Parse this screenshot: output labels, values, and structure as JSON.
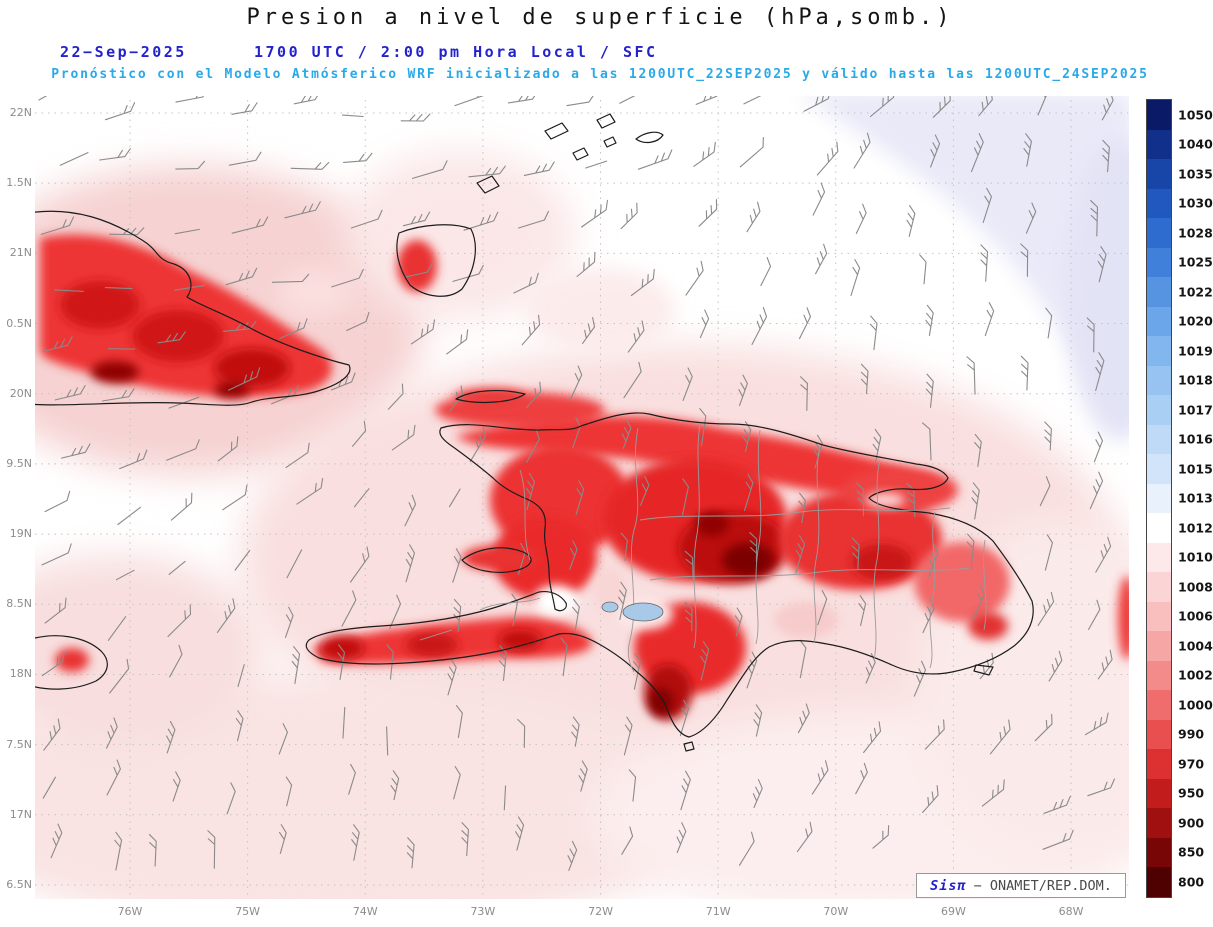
{
  "header": {
    "title": "Presion a nivel de superficie (hPa,somb.)",
    "date": "22−Sep−2025",
    "valid_line": "1700 UTC / 2:00 pm Hora Local / SFC",
    "model_line": "Pronóstico con el Modelo Atmósferico WRF inicializado a las 1200UTC_22SEP2025 y válido hasta las 1200UTC_24SEP2025"
  },
  "axes": {
    "lat_labels": [
      "22N",
      "1.5N",
      "21N",
      "0.5N",
      "20N",
      "9.5N",
      "19N",
      "8.5N",
      "18N",
      "7.5N",
      "17N",
      "6.5N"
    ],
    "lon_labels": [
      "76W",
      "75W",
      "74W",
      "73W",
      "72W",
      "71W",
      "70W",
      "69W",
      "68W"
    ]
  },
  "colorbar": {
    "unit": "hPa",
    "levels": [
      {
        "value": "1050",
        "color": "#0a1a66"
      },
      {
        "value": "1040",
        "color": "#10308c"
      },
      {
        "value": "1035",
        "color": "#1746a8"
      },
      {
        "value": "1030",
        "color": "#2158bf"
      },
      {
        "value": "1028",
        "color": "#2f6cd0"
      },
      {
        "value": "1025",
        "color": "#4180da"
      },
      {
        "value": "1022",
        "color": "#5694e2"
      },
      {
        "value": "1020",
        "color": "#6ca6ea"
      },
      {
        "value": "1019",
        "color": "#82b6ef"
      },
      {
        "value": "1018",
        "color": "#97c3f2"
      },
      {
        "value": "1017",
        "color": "#aacff5"
      },
      {
        "value": "1016",
        "color": "#bedaf7"
      },
      {
        "value": "1015",
        "color": "#d2e4f9"
      },
      {
        "value": "1013",
        "color": "#e8f1fc"
      },
      {
        "value": "1012",
        "color": "#ffffff"
      },
      {
        "value": "1010",
        "color": "#fde9e9"
      },
      {
        "value": "1008",
        "color": "#fbd5d5"
      },
      {
        "value": "1006",
        "color": "#f9bfbf"
      },
      {
        "value": "1004",
        "color": "#f7a6a6"
      },
      {
        "value": "1002",
        "color": "#f48b8b"
      },
      {
        "value": "1000",
        "color": "#f06d6d"
      },
      {
        "value": "990",
        "color": "#e94f4f"
      },
      {
        "value": "970",
        "color": "#dd3030"
      },
      {
        "value": "950",
        "color": "#c21c1c"
      },
      {
        "value": "900",
        "color": "#a01010"
      },
      {
        "value": "850",
        "color": "#780606"
      },
      {
        "value": "800",
        "color": "#4f0000"
      }
    ]
  },
  "credit": {
    "app": "Sisπ",
    "org": "− ONAMET/REP.DOM."
  },
  "colors": {
    "title": "#141414",
    "date_line": "#2323cc",
    "model_line": "#29a9e8",
    "axis_labels": "#8c8c8c"
  }
}
